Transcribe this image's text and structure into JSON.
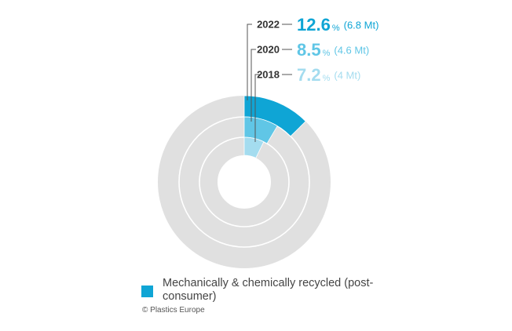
{
  "chart_data": {
    "type": "pie",
    "series": [
      {
        "name": "2022",
        "share_percent": 12.6,
        "share_label": "12.6",
        "unit": "%",
        "volume": "(6.8 Mt)",
        "color": "#0fa5d5"
      },
      {
        "name": "2020",
        "share_percent": 8.5,
        "share_label": "8.5",
        "unit": "%",
        "volume": "(4.6 Mt)",
        "color": "#60c6e6"
      },
      {
        "name": "2018",
        "share_percent": 7.2,
        "share_label": "7.2",
        "unit": "%",
        "volume": "(4 Mt)",
        "color": "#a4dcef"
      }
    ],
    "remainder_color": "#e0e0e0",
    "legend": {
      "label": "Mechanically & chemically recycled (post-consumer)",
      "color": "#0fa5d5",
      "position": "bottom-left"
    }
  },
  "credit": "© Plastics Europe"
}
